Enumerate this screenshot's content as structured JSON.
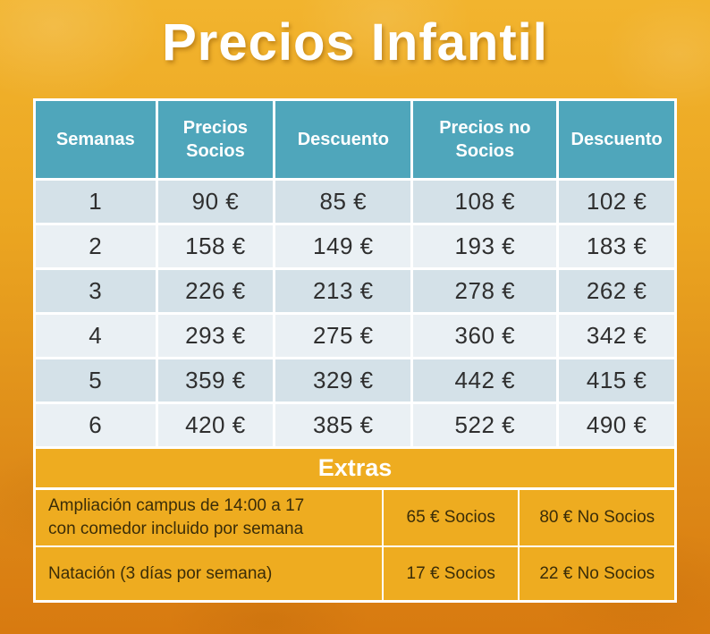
{
  "title": "Precios Infantil",
  "table": {
    "headers": [
      "Semanas",
      "Precios Socios",
      "Descuento",
      "Precios no Socios",
      "Descuento"
    ],
    "rows": [
      [
        "1",
        "90 €",
        "85 €",
        "108 €",
        "102 €"
      ],
      [
        "2",
        "158 €",
        "149 €",
        "193 €",
        "183 €"
      ],
      [
        "3",
        "226 €",
        "213 €",
        "278 €",
        "262 €"
      ],
      [
        "4",
        "293 €",
        "275 €",
        "360 €",
        "342 €"
      ],
      [
        "5",
        "359 €",
        "329 €",
        "442 €",
        "415 €"
      ],
      [
        "6",
        "420 €",
        "385 €",
        "522 €",
        "490 €"
      ]
    ]
  },
  "extras": {
    "header": "Extras",
    "rows": [
      {
        "label": "Ampliación campus de 14:00 a 17 con comedor incluido por semana",
        "socios": "65 € Socios",
        "no_socios": "80 € No Socios"
      },
      {
        "label": "Natación (3 días por semana)",
        "socios": "17 € Socios",
        "no_socios": "22 € No Socios"
      }
    ]
  },
  "colors": {
    "header_teal": "#4fa6bb",
    "row_odd": "#d4e1e8",
    "row_even": "#eaf0f4",
    "extras_orange": "#eeac20",
    "background_top": "#f2b42e",
    "background_bottom": "#d87a10",
    "title_text": "#ffffff",
    "body_text": "#2f2f2f",
    "extras_text": "#3b2d08"
  }
}
